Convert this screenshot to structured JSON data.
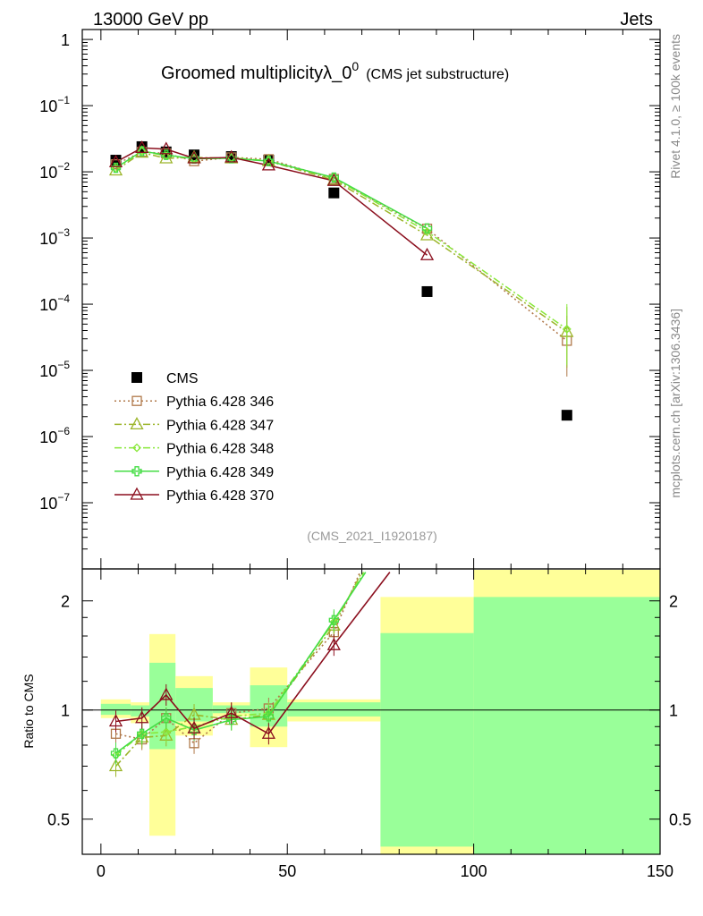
{
  "header": {
    "left": "13000 GeV pp",
    "right": "Jets"
  },
  "plot_title": {
    "main": "Groomed multiplicityλ_0",
    "superscript": "0",
    "sub": "(CMS jet substructure)"
  },
  "analysis_id": "(CMS_2021_I1920187)",
  "side_label_top": "Rivet 4.1.0, ≥ 100k events",
  "side_label_bottom": "mcplots.cern.ch [arXiv:1306.3436]",
  "colors": {
    "data": "#000000",
    "s346": "#b0784a",
    "s347": "#9cb52a",
    "s348": "#88e83a",
    "s349": "#44dd44",
    "s370": "#8b0f1e",
    "band_yellow": "#ffff99",
    "band_green": "#99ff99"
  },
  "chart_data": [
    {
      "type": "scatter",
      "panel": "main",
      "log_y": true,
      "xlim": [
        -5,
        150
      ],
      "ylim_log10": [
        -8,
        0.15
      ],
      "ytick_labels": [
        "1",
        "10",
        "10",
        "10",
        "10",
        "10",
        "10",
        "10"
      ],
      "ytick_exponents": [
        "",
        "−1",
        "−2",
        "−3",
        "−4",
        "−5",
        "−6",
        "−7"
      ],
      "ytick_log10": [
        0,
        -1,
        -2,
        -3,
        -4,
        -5,
        -6,
        -7
      ],
      "legend_position": "bottom-left",
      "series": [
        {
          "name": "CMS",
          "marker": "square-filled",
          "x": [
            4,
            11,
            17.5,
            25,
            35,
            45,
            62.5,
            87.5,
            125
          ],
          "y": [
            0.015,
            0.024,
            0.02,
            0.018,
            0.017,
            0.015,
            0.0048,
            0.000155,
            2.1e-06
          ]
        },
        {
          "name": "Pythia 6.428 346",
          "marker": "square-open",
          "line": "dotted",
          "x": [
            4,
            11,
            17.5,
            25,
            35,
            45,
            62.5,
            87.5,
            125
          ],
          "y": [
            0.013,
            0.02,
            0.019,
            0.0145,
            0.0165,
            0.0155,
            0.0078,
            0.00138,
            2.8e-05
          ]
        },
        {
          "name": "Pythia 6.428 347",
          "marker": "triangle-open",
          "line": "dashdot",
          "x": [
            4,
            11,
            17.5,
            25,
            35,
            45,
            62.5,
            87.5,
            125
          ],
          "y": [
            0.0105,
            0.0195,
            0.016,
            0.0165,
            0.016,
            0.0145,
            0.0075,
            0.0011,
            3.8e-05
          ]
        },
        {
          "name": "Pythia 6.428 348",
          "marker": "diamond-open",
          "line": "dashdot",
          "x": [
            4,
            11,
            17.5,
            25,
            35,
            45,
            62.5,
            87.5,
            125
          ],
          "y": [
            0.0112,
            0.0205,
            0.0175,
            0.016,
            0.0163,
            0.0147,
            0.008,
            0.00125,
            4.2e-05
          ]
        },
        {
          "name": "Pythia 6.428 349",
          "marker": "cross",
          "line": "solid",
          "x": [
            4,
            11,
            17.5,
            25,
            35,
            45,
            62.5,
            87.5
          ],
          "y": [
            0.0115,
            0.0205,
            0.018,
            0.0158,
            0.016,
            0.0145,
            0.0082,
            0.0014
          ]
        },
        {
          "name": "Pythia 6.428 370",
          "marker": "triangle-open",
          "line": "solid",
          "x": [
            4,
            11,
            17.5,
            25,
            35,
            45,
            62.5,
            87.5
          ],
          "y": [
            0.014,
            0.023,
            0.022,
            0.016,
            0.0165,
            0.0125,
            0.0073,
            0.00055
          ]
        }
      ]
    },
    {
      "type": "line",
      "panel": "ratio",
      "ylabel": "Ratio to CMS",
      "log_y": true,
      "xlim": [
        -5,
        150
      ],
      "ylim": [
        0.4,
        2.45
      ],
      "xtick_labels": [
        "0",
        "50",
        "100",
        "150"
      ],
      "ytick_labels": [
        "0.5",
        "1",
        "2"
      ],
      "uncertainty_bands": {
        "edges": [
          0,
          8,
          13,
          20,
          30,
          40,
          50,
          75,
          100,
          150
        ],
        "yellow_lo": [
          0.95,
          0.92,
          0.45,
          0.85,
          0.96,
          0.79,
          0.93,
          0.38,
          0.38
        ],
        "yellow_hi": [
          1.07,
          1.05,
          1.62,
          1.24,
          1.05,
          1.31,
          1.07,
          2.05,
          2.45
        ],
        "green_lo": [
          0.97,
          0.96,
          0.78,
          0.93,
          0.98,
          0.9,
          0.96,
          0.42,
          0.36
        ],
        "green_hi": [
          1.04,
          1.03,
          1.35,
          1.15,
          1.03,
          1.17,
          1.05,
          1.63,
          2.05
        ]
      },
      "series": [
        {
          "name": "Pythia 6.428 346",
          "x": [
            4,
            11,
            17.5,
            25,
            35,
            45,
            62.5,
            69.5
          ],
          "y": [
            0.86,
            0.83,
            0.95,
            0.81,
            0.98,
            1.01,
            1.64,
            2.4
          ]
        },
        {
          "name": "Pythia 6.428 347",
          "x": [
            4,
            11,
            17.5,
            25,
            35,
            45,
            62.5,
            70
          ],
          "y": [
            0.7,
            0.84,
            0.85,
            0.97,
            0.94,
            0.97,
            1.71,
            2.4
          ]
        },
        {
          "name": "Pythia 6.428 348",
          "x": [
            4,
            11,
            17.5,
            25,
            35,
            45,
            62.5,
            70.5
          ],
          "y": [
            0.75,
            0.86,
            0.87,
            0.9,
            0.96,
            0.98,
            1.75,
            2.4
          ]
        },
        {
          "name": "Pythia 6.428 349",
          "x": [
            4,
            11,
            17.5,
            25,
            35,
            45,
            62.5,
            71
          ],
          "y": [
            0.76,
            0.86,
            0.95,
            0.88,
            0.94,
            0.96,
            1.77,
            2.4
          ]
        },
        {
          "name": "Pythia 6.428 370",
          "x": [
            4,
            11,
            17.5,
            25,
            35,
            45,
            62.5,
            77.5
          ],
          "y": [
            0.93,
            0.95,
            1.1,
            0.89,
            0.98,
            0.86,
            1.51,
            2.4
          ]
        }
      ]
    }
  ]
}
